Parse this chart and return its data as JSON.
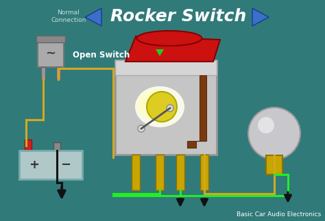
{
  "bg_color": "#317a7a",
  "title": "Rocker Switch",
  "title_color": "white",
  "title_fontsize": 18,
  "nav_arrow_color_left": "#3a70cc",
  "nav_arrow_color_right": "#3a70cc",
  "normal_connection_text": "Normal\nConnection",
  "open_switch_text": "Open Switch",
  "open_switch_color": "white",
  "credit_text": "Basic Car Audio Electronics",
  "credit_color": "white",
  "credit_fontsize": 6.5,
  "wire_yellow": "#d4a820",
  "wire_green": "#22ee22",
  "wire_black": "#111111",
  "switch_body_color": "#c8c8c8",
  "rocker_color": "#cc1111",
  "terminal_color": "#c8a500",
  "battery_color": "#b0c8c8",
  "battery_pos_color": "#cc2222",
  "fuse_color": "#aaaaaa",
  "bulb_glow": "#ffffcc",
  "bulb_ball_color": "#dddddd",
  "brown_trace": "#7a3a10"
}
